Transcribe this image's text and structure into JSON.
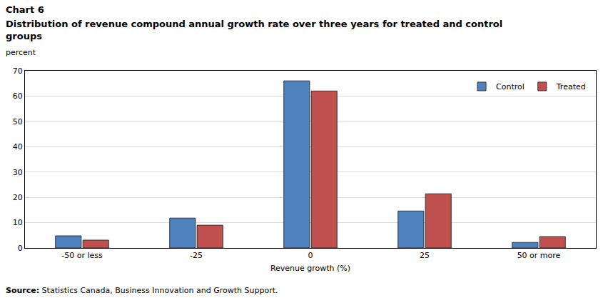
{
  "chart_data": {
    "type": "bar",
    "title": "Chart 6",
    "subtitle": "Distribution of revenue compound annual growth rate over three years for treated and control groups",
    "y_label": "percent",
    "x_label": "Revenue growth (%)",
    "source": "Source: Statistics Canada, Business Innovation and Growth Support.",
    "categories": [
      "-50 or less",
      "-25",
      "0",
      "25",
      "50 or more"
    ],
    "series": [
      {
        "name": "Control",
        "color": "#4f81bd",
        "values": [
          4.8,
          11.8,
          66,
          14.6,
          2.2
        ]
      },
      {
        "name": "Treated",
        "color": "#c0504d",
        "values": [
          3.1,
          9.0,
          62,
          21.4,
          4.5
        ]
      }
    ],
    "ylim": [
      0,
      70
    ],
    "yticks": [
      0,
      10,
      20,
      30,
      40,
      50,
      60,
      70
    ],
    "grid": true,
    "legend": "upper right"
  }
}
